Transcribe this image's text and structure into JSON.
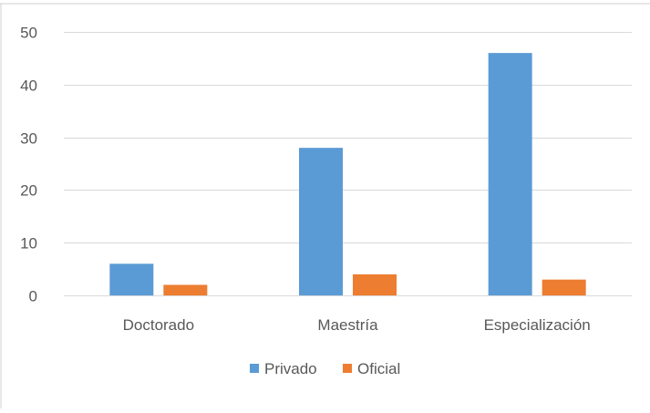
{
  "chart_data": {
    "type": "bar",
    "categories": [
      "Doctorado",
      "Maestría",
      "Especialización"
    ],
    "series": [
      {
        "name": "Privado",
        "values": [
          6,
          28,
          46
        ],
        "color": "#5B9BD5"
      },
      {
        "name": "Oficial",
        "values": [
          2,
          4,
          3
        ],
        "color": "#ED7D31"
      }
    ],
    "ylim": [
      0,
      50
    ],
    "yticks": [
      0,
      10,
      20,
      30,
      40,
      50
    ],
    "grid": true,
    "legend_position": "bottom",
    "title": "",
    "xlabel": "",
    "ylabel": ""
  }
}
